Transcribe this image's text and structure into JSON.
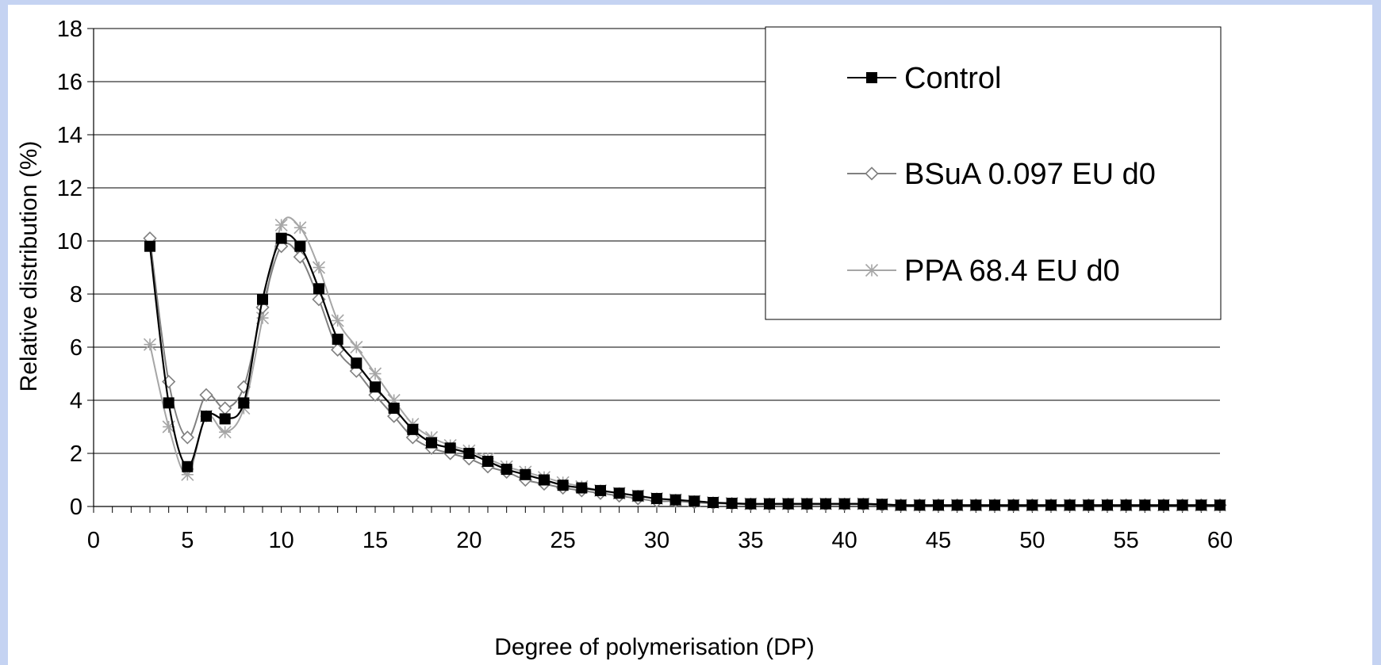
{
  "chart_data": {
    "type": "line",
    "xlabel": "Degree of polymerisation (DP)",
    "ylabel": "Relative distribution (%)",
    "xlim": [
      0,
      60
    ],
    "ylim": [
      0,
      18
    ],
    "xticks": [
      0,
      5,
      10,
      15,
      20,
      25,
      30,
      35,
      40,
      45,
      50,
      55,
      60
    ],
    "yticks": [
      0,
      2,
      4,
      6,
      8,
      10,
      12,
      14,
      16,
      18
    ],
    "grid": "horizontal",
    "legend_position": "top-right",
    "x": [
      3,
      4,
      5,
      6,
      7,
      8,
      9,
      10,
      11,
      12,
      13,
      14,
      15,
      16,
      17,
      18,
      19,
      20,
      21,
      22,
      23,
      24,
      25,
      26,
      27,
      28,
      29,
      30,
      31,
      32,
      33,
      34,
      35,
      36,
      37,
      38,
      39,
      40,
      41,
      42,
      43,
      44,
      45,
      46,
      47,
      48,
      49,
      50,
      51,
      52,
      53,
      54,
      55,
      56,
      57,
      58,
      59,
      60
    ],
    "series": [
      {
        "name": "Control",
        "color": "#000000",
        "marker": "filled-square",
        "values": [
          9.8,
          3.9,
          1.5,
          3.4,
          3.3,
          3.9,
          7.8,
          10.1,
          9.8,
          8.2,
          6.3,
          5.4,
          4.5,
          3.7,
          2.9,
          2.4,
          2.2,
          2.0,
          1.7,
          1.4,
          1.2,
          1.0,
          0.8,
          0.7,
          0.6,
          0.5,
          0.4,
          0.3,
          0.25,
          0.2,
          0.15,
          0.12,
          0.1,
          0.1,
          0.1,
          0.1,
          0.1,
          0.1,
          0.1,
          0.08,
          0.05,
          0.05,
          0.05,
          0.05,
          0.05,
          0.05,
          0.05,
          0.05,
          0.05,
          0.05,
          0.05,
          0.05,
          0.05,
          0.05,
          0.05,
          0.05,
          0.05,
          0.05
        ]
      },
      {
        "name": "BSuA 0.097 EU d0",
        "color": "#808080",
        "marker": "open-diamond",
        "values": [
          10.1,
          4.7,
          2.6,
          4.2,
          3.7,
          4.5,
          7.5,
          9.8,
          9.4,
          7.8,
          5.9,
          5.1,
          4.2,
          3.4,
          2.6,
          2.2,
          2.0,
          1.8,
          1.5,
          1.3,
          1.0,
          0.85,
          0.7,
          0.6,
          0.5,
          0.4,
          0.3,
          0.2,
          0.2,
          0.15,
          0.12,
          0.1,
          0.08,
          0.08,
          0.08,
          0.08,
          0.08,
          0.08,
          0.08,
          0.05,
          0.05,
          0.05,
          0.05,
          0.05,
          0.05,
          0.05,
          0.05,
          0.05,
          0.05,
          0.05,
          0.05,
          0.05,
          0.05,
          0.05,
          0.05,
          0.05,
          0.05,
          0.05
        ]
      },
      {
        "name": "PPA 68.4 EU d0",
        "color": "#a6a6a6",
        "marker": "star",
        "values": [
          6.1,
          3.0,
          1.2,
          3.4,
          2.8,
          3.7,
          7.1,
          10.6,
          10.5,
          9.0,
          7.0,
          6.0,
          5.0,
          4.0,
          3.1,
          2.6,
          2.3,
          2.1,
          1.8,
          1.5,
          1.3,
          1.1,
          0.9,
          0.75,
          0.6,
          0.5,
          0.4,
          0.3,
          0.25,
          0.2,
          0.15,
          0.12,
          0.1,
          0.1,
          0.1,
          0.1,
          0.1,
          0.1,
          0.1,
          0.08,
          0.05,
          0.05,
          0.05,
          0.05,
          0.05,
          0.05,
          0.05,
          0.05,
          0.05,
          0.05,
          0.05,
          0.05,
          0.05,
          0.05,
          0.05,
          0.05,
          0.05,
          0.05
        ]
      }
    ]
  }
}
